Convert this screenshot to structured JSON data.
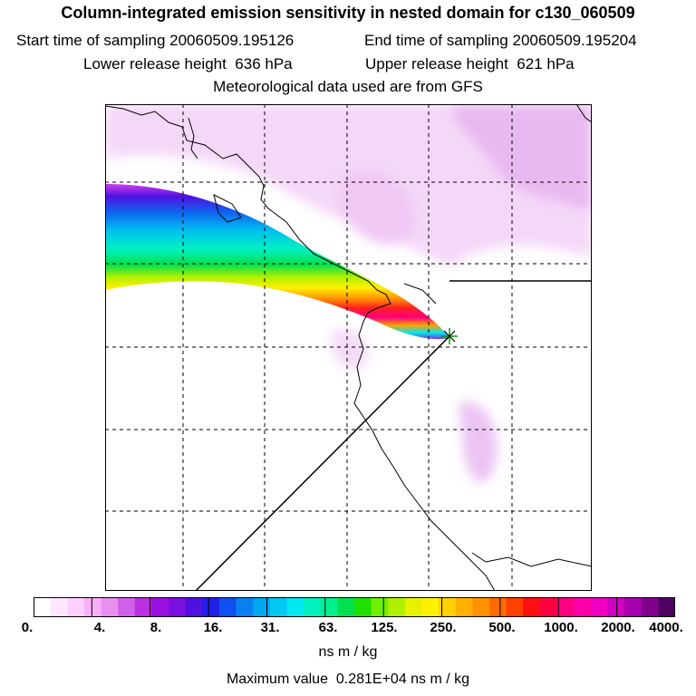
{
  "header": {
    "title": "Column-integrated emission sensitivity in nested domain for c130_060509",
    "start_label": "Start time of sampling",
    "start_value": "20060509.195126",
    "end_label": "End time of sampling",
    "end_value": "20060509.195204",
    "lower_label": "Lower release height",
    "lower_value": "636 hPa",
    "upper_label": "Upper release height",
    "upper_value": "621 hPa",
    "met_text": "Meteorological data used are from GFS"
  },
  "colorbar": {
    "colors": [
      "#ffffff",
      "#ffe8ff",
      "#ffd0ff",
      "#f7b0f7",
      "#e890f0",
      "#d060e8",
      "#b830e0",
      "#9a10e0",
      "#7a10e0",
      "#5010e0",
      "#2020e8",
      "#1050f0",
      "#0a80f0",
      "#00a8f0",
      "#00c8f0",
      "#00e8f0",
      "#00f0c0",
      "#00f090",
      "#00e050",
      "#20e000",
      "#70f000",
      "#b0f000",
      "#e8f000",
      "#fff000",
      "#ffd000",
      "#ffb000",
      "#ff9000",
      "#ff6a00",
      "#ff4000",
      "#ff1010",
      "#ff0040",
      "#ff0080",
      "#ff00a8",
      "#f000c0",
      "#d000c0",
      "#a800b0",
      "#80008c",
      "#500060"
    ],
    "ticks": [
      "0.",
      "4.",
      "8.",
      "16.",
      "31.",
      "63.",
      "125.",
      "250.",
      "500.",
      "1000.",
      "2000.",
      "4000."
    ],
    "units": "ns m / kg",
    "max_label": "Maximum value",
    "max_value": "0.281E+04 ns m / kg"
  }
}
